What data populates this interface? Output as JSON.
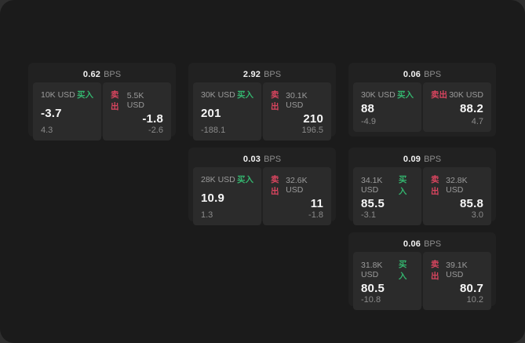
{
  "unit_label": "BPS",
  "buy_label": "买入",
  "sell_label": "卖出",
  "colors": {
    "surface": "#1b1b1b",
    "card": "#212121",
    "panel": "#2b2b2b",
    "buy_green": "#34b46e",
    "sell_red": "#d9455f"
  },
  "cards": [
    {
      "bps": "0.62",
      "buy": {
        "amount": "10K USD",
        "price": "-3.7",
        "delta": "4.3"
      },
      "sell": {
        "amount": "5.5K USD",
        "price": "-1.8",
        "delta": "-2.6"
      }
    },
    {
      "bps": "2.92",
      "buy": {
        "amount": "30K USD",
        "price": "201",
        "delta": "-188.1"
      },
      "sell": {
        "amount": "30.1K USD",
        "price": "210",
        "delta": "196.5"
      }
    },
    {
      "bps": "0.06",
      "buy": {
        "amount": "30K USD",
        "price": "88",
        "delta": "-4.9"
      },
      "sell": {
        "amount": "30K USD",
        "price": "88.2",
        "delta": "4.7"
      }
    },
    {
      "bps": "0.03",
      "buy": {
        "amount": "28K USD",
        "price": "10.9",
        "delta": "1.3"
      },
      "sell": {
        "amount": "32.6K USD",
        "price": "11",
        "delta": "-1.8"
      }
    },
    {
      "bps": "0.09",
      "buy": {
        "amount": "34.1K USD",
        "price": "85.5",
        "delta": "-3.1"
      },
      "sell": {
        "amount": "32.8K USD",
        "price": "85.8",
        "delta": "3.0"
      }
    },
    {
      "bps": "0.06",
      "buy": {
        "amount": "31.8K USD",
        "price": "80.5",
        "delta": "-10.8"
      },
      "sell": {
        "amount": "39.1K USD",
        "price": "80.7",
        "delta": "10.2"
      }
    }
  ]
}
